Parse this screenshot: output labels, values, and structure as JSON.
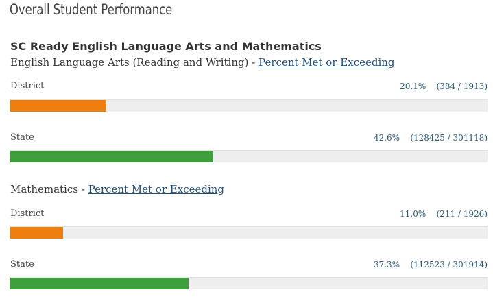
{
  "page_title": "Overall Student Performance",
  "section_heading": "SC Ready English Language Arts and Mathematics",
  "subjects": [
    {
      "name": "English Language Arts (Reading and Writing)",
      "separator": " - ",
      "link": "Percent Met or Exceeding",
      "rows": [
        {
          "label": "District",
          "percent": "20.1%",
          "counts": "(384 / 1913)",
          "fraction": 0.201,
          "color": "#ee7f0f"
        },
        {
          "label": "State",
          "percent": "42.6%",
          "counts": "(128425 / 301118)",
          "fraction": 0.426,
          "color": "#3f9f3c"
        }
      ]
    },
    {
      "name": "Mathematics",
      "separator": " - ",
      "link": "Percent Met or Exceeding",
      "rows": [
        {
          "label": "District",
          "percent": "11.0%",
          "counts": "(211 / 1926)",
          "fraction": 0.11,
          "color": "#ee7f0f"
        },
        {
          "label": "State",
          "percent": "37.3%",
          "counts": "(112523 / 301914)",
          "fraction": 0.373,
          "color": "#3f9f3c"
        }
      ]
    }
  ]
}
